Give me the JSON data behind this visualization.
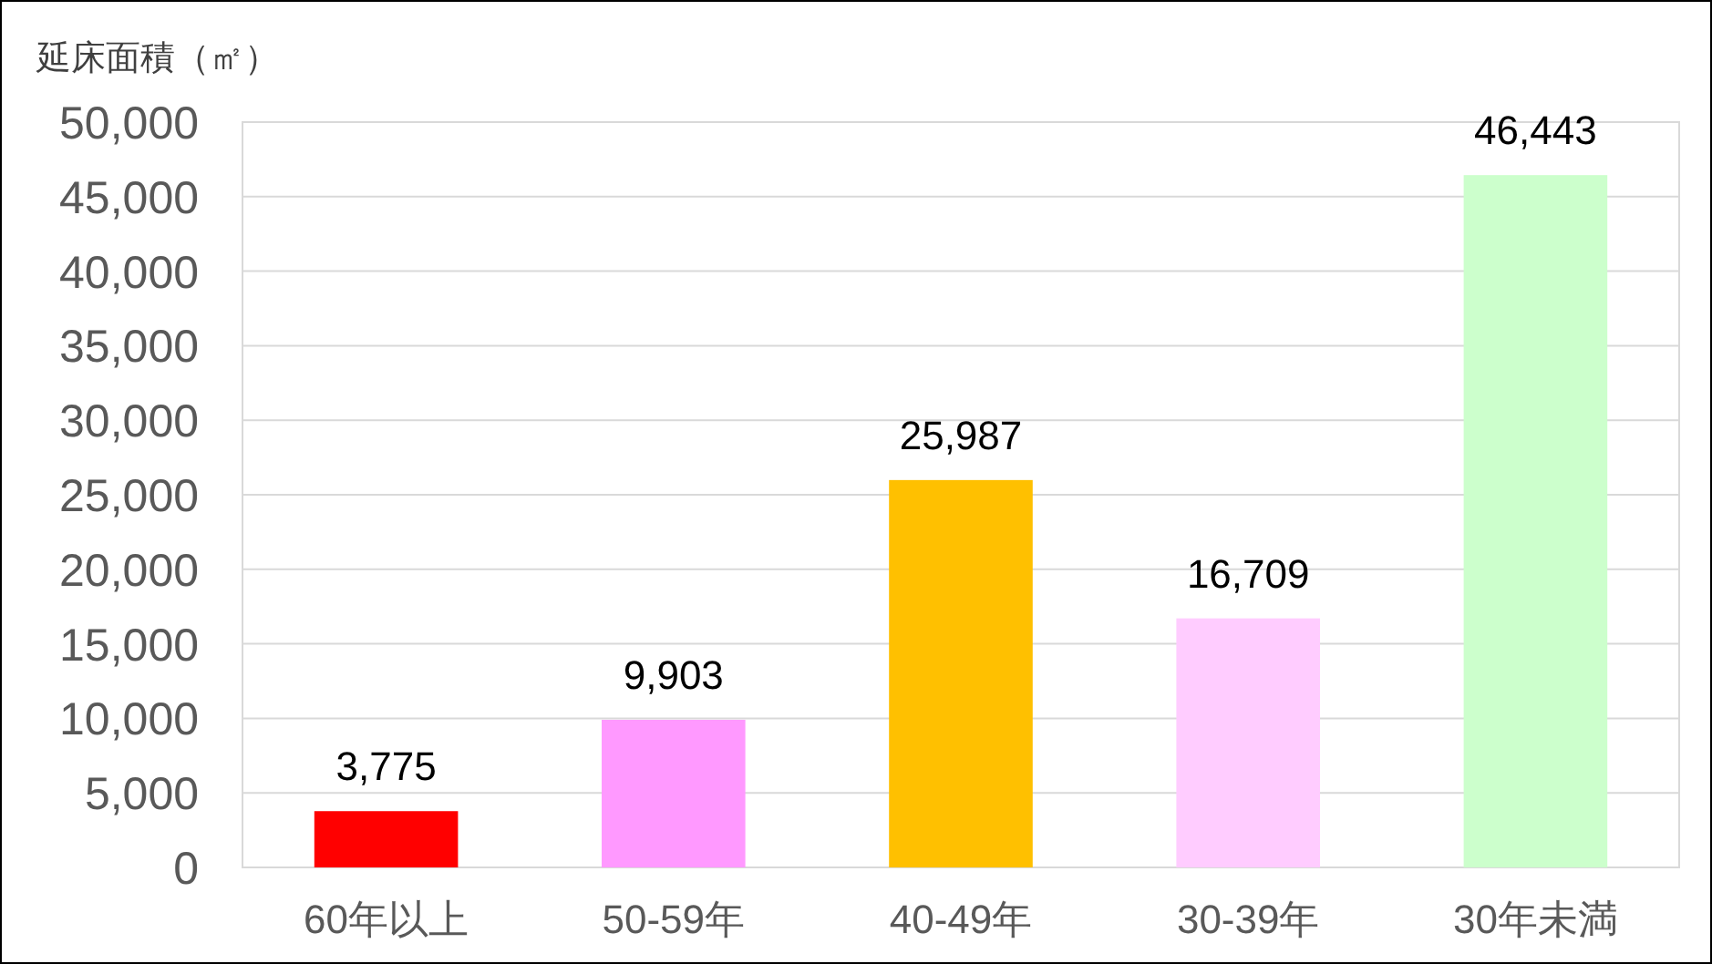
{
  "chart_data": {
    "type": "bar",
    "ylabel": "延床面積（㎡）",
    "categories": [
      "60年以上",
      "50-59年",
      "40-49年",
      "30-39年",
      "30年未満"
    ],
    "values": [
      3775,
      9903,
      25987,
      16709,
      46443
    ],
    "value_labels": [
      "3,775",
      "9,903",
      "25,987",
      "16,709",
      "46,443"
    ],
    "colors": [
      "#ff0000",
      "#ff99ff",
      "#ffc000",
      "#ffccff",
      "#ccffcc"
    ],
    "ylim": [
      0,
      50000
    ],
    "yticks": [
      0,
      {
        "value": 5000,
        "label": "5,000"
      },
      {
        "value": 10000,
        "label": "10,000"
      },
      {
        "value": 15000,
        "label": "15,000"
      },
      {
        "value": 20000,
        "label": "20,000"
      },
      {
        "value": 25000,
        "label": "25,000"
      },
      {
        "value": 30000,
        "label": "30,000"
      },
      {
        "value": 35000,
        "label": "35,000"
      },
      {
        "value": 40000,
        "label": "40,000"
      },
      {
        "value": 45000,
        "label": "45,000"
      },
      {
        "value": 50000,
        "label": "50,000"
      }
    ],
    "grid": "y"
  }
}
